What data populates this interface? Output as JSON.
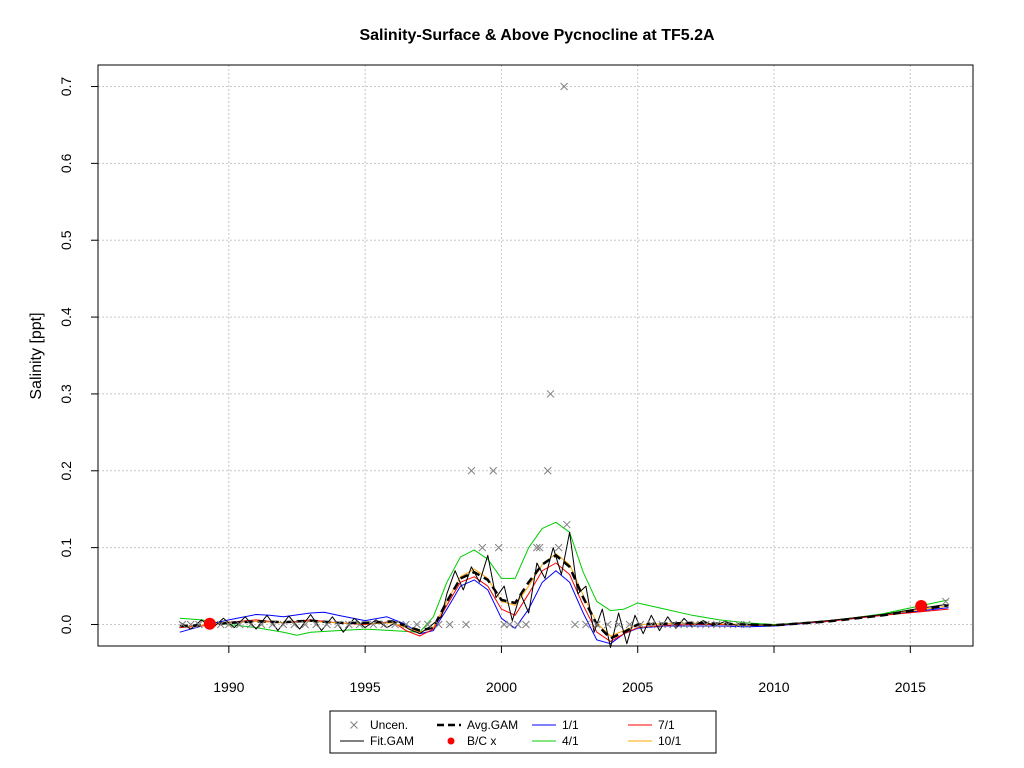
{
  "chart_data": {
    "type": "line",
    "title": "Salinity-Surface & Above Pycnocline at TF5.2A",
    "xlabel": "",
    "ylabel": "Salinity [ppt]",
    "xlim": [
      1985.2,
      2017.3
    ],
    "ylim": [
      -0.028,
      0.728
    ],
    "x_ticks": [
      1990,
      1995,
      2000,
      2005,
      2010,
      2015
    ],
    "y_ticks": [
      0.0,
      0.1,
      0.2,
      0.3,
      0.4,
      0.5,
      0.6,
      0.7
    ],
    "x_tick_labels": [
      "1990",
      "1995",
      "2000",
      "2005",
      "2010",
      "2015"
    ],
    "y_tick_labels": [
      "0.0",
      "0.1",
      "0.2",
      "0.3",
      "0.4",
      "0.5",
      "0.6",
      "0.7"
    ],
    "grid": true,
    "legend_placement": "bottom-center",
    "legend": [
      {
        "key": "uncen",
        "label": "Uncen.",
        "kind": "x",
        "color": "#808080"
      },
      {
        "key": "avg",
        "label": "Avg.GAM",
        "kind": "dash",
        "color": "#000000"
      },
      {
        "key": "s11",
        "label": "1/1",
        "kind": "line",
        "color": "#0000ff"
      },
      {
        "key": "s71",
        "label": "7/1",
        "kind": "line",
        "color": "#ff0000"
      },
      {
        "key": "fit",
        "label": "Fit.GAM",
        "kind": "line",
        "color": "#000000"
      },
      {
        "key": "bc",
        "label": "B/C x",
        "kind": "dot",
        "color": "#ff0000"
      },
      {
        "key": "s41",
        "label": "4/1",
        "kind": "line",
        "color": "#00cc00"
      },
      {
        "key": "s101",
        "label": "10/1",
        "kind": "line",
        "color": "#ffa500"
      }
    ],
    "uncensored_points": {
      "x": [
        1988.3,
        1988.6,
        1988.9,
        1989.3,
        1989.7,
        1990.0,
        1990.4,
        1990.8,
        1991.2,
        1991.6,
        1992.0,
        1992.4,
        1992.8,
        1993.2,
        1993.6,
        1994.0,
        1994.4,
        1994.8,
        1995.3,
        1995.7,
        1996.1,
        1996.5,
        1996.9,
        1997.3,
        1997.7,
        1998.1,
        1998.7,
        1998.9,
        1999.3,
        1999.7,
        1999.9,
        2000.1,
        2000.3,
        2000.6,
        2000.9,
        2001.3,
        2001.4,
        2001.7,
        2001.8,
        2002.1,
        2002.3,
        2002.4,
        2002.7,
        2003.1,
        2003.5,
        2003.9,
        2004.3,
        2004.7,
        2005.1,
        2005.5,
        2005.9,
        2006.3,
        2006.7,
        2007.1,
        2007.5,
        2007.9,
        2008.3,
        2008.7,
        2009.0,
        2016.3
      ],
      "y": [
        0.0,
        0.0,
        0.0,
        0.0,
        0.0,
        0.0,
        0.0,
        0.0,
        0.0,
        0.0,
        0.0,
        0.0,
        0.0,
        0.0,
        0.0,
        0.0,
        0.0,
        0.0,
        0.0,
        0.0,
        0.0,
        0.0,
        0.0,
        0.0,
        0.0,
        0.0,
        0.0,
        0.2,
        0.1,
        0.2,
        0.1,
        0.0,
        0.0,
        0.0,
        0.0,
        0.1,
        0.1,
        0.2,
        0.3,
        0.1,
        0.7,
        0.13,
        0.0,
        0.0,
        0.0,
        0.0,
        0.0,
        0.0,
        0.0,
        0.0,
        0.0,
        0.0,
        0.0,
        0.0,
        0.0,
        0.0,
        0.0,
        0.0,
        0.0,
        0.03
      ]
    },
    "bc_points": {
      "x": [
        1989.3,
        2015.4
      ],
      "y": [
        0.001,
        0.024
      ]
    },
    "series": [
      {
        "key": "avg",
        "name": "Avg.GAM",
        "color": "#000000",
        "style": "dashed",
        "x": [
          1988.2,
          1989.0,
          1990.0,
          1991.0,
          1992.0,
          1993.0,
          1994.0,
          1995.0,
          1996.0,
          1997.0,
          1997.5,
          1998.0,
          1998.5,
          1999.0,
          1999.5,
          2000.0,
          2000.5,
          2001.0,
          2001.5,
          2002.0,
          2002.5,
          2003.0,
          2003.5,
          2004.0,
          2004.5,
          2005.0,
          2006.0,
          2007.0,
          2008.0,
          2009.0,
          2010.0,
          2012.0,
          2014.0,
          2016.4
        ],
        "y": [
          -0.002,
          -0.001,
          0.002,
          0.004,
          0.003,
          0.005,
          0.002,
          0.002,
          0.004,
          -0.008,
          -0.004,
          0.03,
          0.06,
          0.068,
          0.058,
          0.032,
          0.028,
          0.055,
          0.078,
          0.09,
          0.075,
          0.035,
          0.0,
          -0.018,
          -0.01,
          0.0,
          0.001,
          0.002,
          0.001,
          0.0,
          -0.001,
          0.004,
          0.012,
          0.025
        ]
      },
      {
        "key": "fit",
        "name": "Fit.GAM",
        "color": "#000000",
        "style": "solid",
        "x": [
          1988.2,
          1988.6,
          1989.0,
          1989.4,
          1989.8,
          1990.2,
          1990.6,
          1991.0,
          1991.4,
          1991.8,
          1992.2,
          1992.6,
          1993.0,
          1993.4,
          1993.8,
          1994.2,
          1994.6,
          1995.0,
          1995.4,
          1995.8,
          1996.2,
          1996.6,
          1997.0,
          1997.4,
          1997.8,
          1998.0,
          1998.3,
          1998.6,
          1998.9,
          1999.2,
          1999.5,
          1999.8,
          2000.1,
          2000.4,
          2000.7,
          2001.0,
          2001.3,
          2001.6,
          2001.9,
          2002.2,
          2002.5,
          2002.8,
          2003.1,
          2003.4,
          2003.7,
          2004.0,
          2004.3,
          2004.6,
          2004.9,
          2005.2,
          2005.5,
          2005.8,
          2006.1,
          2006.4,
          2006.7,
          2007.0,
          2007.4,
          2007.8,
          2008.2,
          2008.6,
          2009.0,
          2010.0,
          2011.0,
          2012.0,
          2013.0,
          2014.0,
          2015.0,
          2016.3
        ],
        "y": [
          0.003,
          -0.006,
          0.006,
          -0.005,
          0.008,
          -0.004,
          0.01,
          -0.006,
          0.012,
          -0.008,
          0.011,
          -0.006,
          0.013,
          -0.008,
          0.01,
          -0.01,
          0.008,
          -0.004,
          0.006,
          -0.004,
          0.004,
          -0.006,
          -0.012,
          -0.002,
          0.01,
          0.04,
          0.07,
          0.045,
          0.075,
          0.055,
          0.09,
          0.035,
          0.05,
          0.005,
          0.04,
          0.015,
          0.08,
          0.06,
          0.1,
          0.065,
          0.12,
          0.04,
          0.05,
          -0.01,
          0.02,
          -0.03,
          0.015,
          -0.025,
          0.012,
          -0.012,
          0.012,
          -0.008,
          0.01,
          -0.005,
          0.008,
          -0.003,
          0.005,
          -0.002,
          0.004,
          -0.001,
          0.0,
          -0.001,
          0.002,
          0.005,
          0.009,
          0.013,
          0.019,
          0.026
        ]
      },
      {
        "key": "s11",
        "name": "1/1",
        "color": "#0000ff",
        "style": "solid",
        "x": [
          1988.2,
          1989.0,
          1990.0,
          1991.0,
          1991.5,
          1992.0,
          1993.0,
          1993.5,
          1994.0,
          1995.0,
          1995.8,
          1996.5,
          1997.0,
          1997.5,
          1998.0,
          1998.5,
          1999.0,
          1999.5,
          2000.0,
          2000.5,
          2001.0,
          2001.5,
          2002.0,
          2002.5,
          2003.0,
          2003.5,
          2004.0,
          2004.5,
          2005.0,
          2006.0,
          2007.0,
          2008.0,
          2009.0,
          2010.0,
          2012.0,
          2014.0,
          2016.4
        ],
        "y": [
          -0.01,
          -0.002,
          0.006,
          0.013,
          0.012,
          0.01,
          0.015,
          0.016,
          0.012,
          0.005,
          0.01,
          0.0,
          -0.012,
          -0.008,
          0.02,
          0.05,
          0.058,
          0.045,
          0.008,
          -0.005,
          0.02,
          0.055,
          0.07,
          0.055,
          0.015,
          -0.02,
          -0.025,
          -0.012,
          -0.005,
          -0.002,
          -0.002,
          -0.002,
          -0.003,
          -0.002,
          0.004,
          0.012,
          0.022
        ]
      },
      {
        "key": "s41",
        "name": "4/1",
        "color": "#00cc00",
        "style": "solid",
        "x": [
          1988.2,
          1989.0,
          1990.0,
          1991.0,
          1992.0,
          1992.5,
          1993.0,
          1994.0,
          1995.0,
          1996.0,
          1997.0,
          1997.5,
          1998.0,
          1998.5,
          1999.0,
          1999.5,
          2000.0,
          2000.5,
          2001.0,
          2001.5,
          2002.0,
          2002.5,
          2003.0,
          2003.5,
          2004.0,
          2004.5,
          2005.0,
          2006.0,
          2007.0,
          2008.0,
          2009.0,
          2010.0,
          2012.0,
          2014.0,
          2016.4
        ],
        "y": [
          0.008,
          0.006,
          0.0,
          -0.004,
          -0.01,
          -0.014,
          -0.01,
          -0.008,
          -0.006,
          -0.008,
          -0.01,
          0.01,
          0.055,
          0.088,
          0.097,
          0.085,
          0.06,
          0.06,
          0.1,
          0.125,
          0.133,
          0.12,
          0.068,
          0.03,
          0.018,
          0.02,
          0.028,
          0.02,
          0.012,
          0.006,
          0.002,
          0.0,
          0.004,
          0.014,
          0.032
        ]
      },
      {
        "key": "s71",
        "name": "7/1",
        "color": "#ff0000",
        "style": "solid",
        "x": [
          1988.2,
          1989.0,
          1990.0,
          1991.0,
          1992.0,
          1993.0,
          1994.0,
          1995.0,
          1996.0,
          1996.5,
          1997.0,
          1997.5,
          1998.0,
          1998.5,
          1999.0,
          1999.5,
          2000.0,
          2000.5,
          2001.0,
          2001.5,
          2002.0,
          2002.5,
          2003.0,
          2003.5,
          2004.0,
          2004.5,
          2005.0,
          2006.0,
          2007.0,
          2008.0,
          2009.0,
          2010.0,
          2012.0,
          2014.0,
          2016.4
        ],
        "y": [
          -0.004,
          -0.002,
          0.003,
          0.006,
          0.002,
          0.006,
          0.002,
          0.0,
          0.004,
          -0.008,
          -0.015,
          -0.006,
          0.025,
          0.055,
          0.062,
          0.05,
          0.02,
          0.012,
          0.04,
          0.07,
          0.08,
          0.065,
          0.025,
          -0.01,
          -0.022,
          -0.012,
          -0.004,
          -0.001,
          0.0,
          0.0,
          -0.001,
          -0.001,
          0.004,
          0.012,
          0.02
        ]
      },
      {
        "key": "s101",
        "name": "10/1",
        "color": "#ffa500",
        "style": "solid",
        "x": [
          1988.2,
          1989.0,
          1990.0,
          1991.0,
          1992.0,
          1993.0,
          1994.0,
          1995.0,
          1996.0,
          1997.0,
          1997.5,
          1998.0,
          1998.5,
          1999.0,
          1999.5,
          2000.0,
          2000.5,
          2001.0,
          2001.5,
          2002.0,
          2002.5,
          2003.0,
          2003.5,
          2004.0,
          2004.5,
          2005.0,
          2006.0,
          2007.0,
          2008.0,
          2009.0,
          2010.0,
          2012.0,
          2014.0,
          2016.4
        ],
        "y": [
          -0.003,
          -0.001,
          0.002,
          0.004,
          0.002,
          0.004,
          0.002,
          0.001,
          0.002,
          -0.01,
          -0.004,
          0.03,
          0.062,
          0.072,
          0.06,
          0.03,
          0.025,
          0.05,
          0.078,
          0.092,
          0.078,
          0.038,
          0.002,
          -0.015,
          -0.008,
          0.0,
          0.001,
          0.002,
          0.001,
          0.0,
          -0.001,
          0.005,
          0.013,
          0.024
        ]
      }
    ]
  }
}
